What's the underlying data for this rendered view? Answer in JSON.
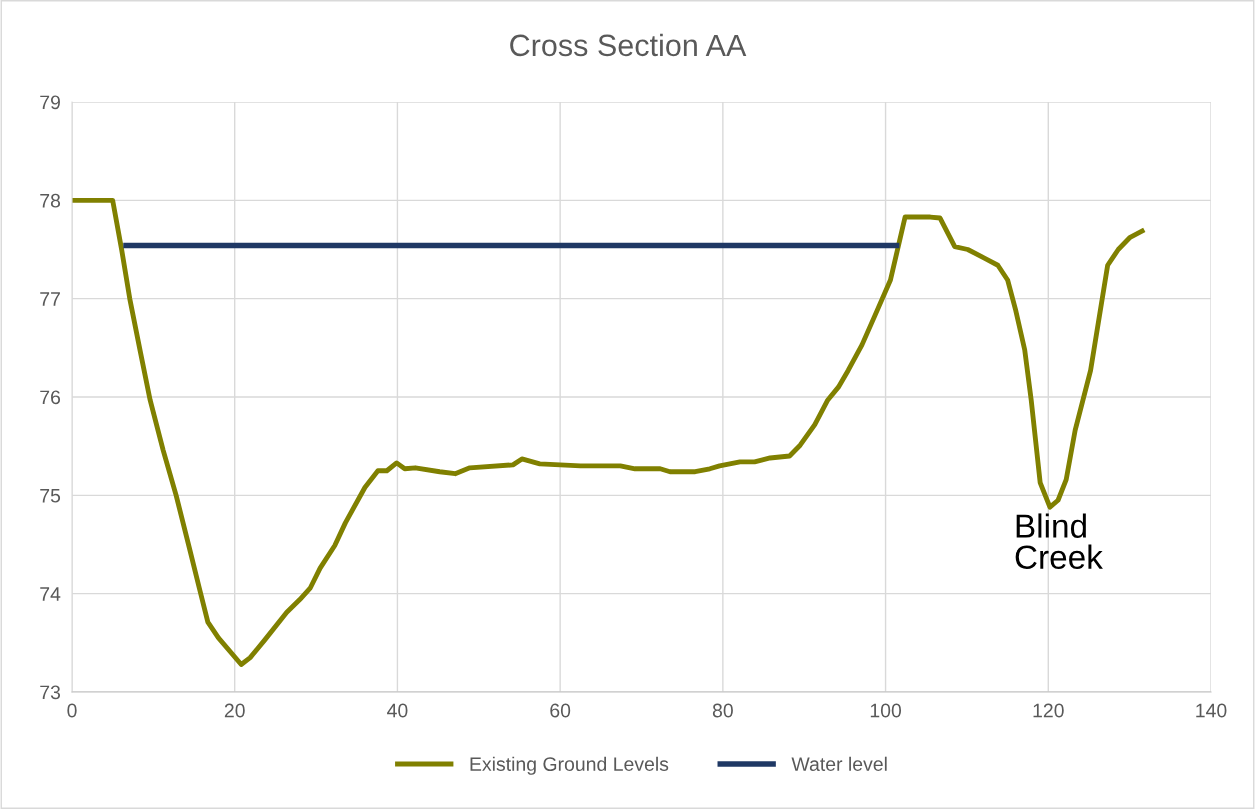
{
  "chart_data": {
    "type": "line",
    "title": "Cross Section AA",
    "xlim": [
      0,
      140
    ],
    "xticks": [
      0,
      20,
      40,
      60,
      80,
      100,
      120,
      140
    ],
    "ylim": [
      73,
      79
    ],
    "yticks": [
      73,
      74,
      75,
      76,
      77,
      78,
      79
    ],
    "grid": true,
    "legend": "bottom",
    "marker": "none",
    "line_style": "solid",
    "annotations": [
      "Blind\nCreek"
    ],
    "series": [
      {
        "name": "Existing Ground Levels",
        "color": "#808000",
        "x": [
          0,
          5.0,
          6.1,
          7.1,
          8.4,
          9.6,
          11.2,
          12.8,
          14.5,
          15.7,
          16.7,
          18.0,
          20.8,
          21.9,
          23.7,
          26.4,
          28.0,
          29.3,
          30.5,
          32.3,
          33.6,
          36.0,
          37.6,
          38.7,
          39.9,
          40.9,
          42.2,
          45.2,
          47.1,
          48.9,
          54.2,
          55.3,
          57.5,
          62.5,
          67.4,
          69.2,
          72.3,
          73.5,
          76.6,
          78.4,
          79.6,
          82.1,
          83.9,
          85.8,
          88.2,
          89.5,
          91.3,
          92.9,
          94.2,
          95.4,
          97.1,
          98.7,
          100.6,
          102.4,
          105.5,
          106.7,
          108.5,
          110.1,
          112.2,
          113.8,
          115.0,
          116.0,
          117.1,
          117.9,
          119.0,
          120.2,
          121.2,
          122.2,
          123.3,
          125.2,
          127.3,
          128.6,
          130.0,
          131.8
        ],
        "values": [
          78.0,
          78.0,
          77.5,
          77.0,
          76.46,
          75.97,
          75.46,
          75.0,
          74.44,
          74.04,
          73.71,
          73.55,
          73.28,
          73.35,
          73.53,
          73.81,
          73.94,
          74.06,
          74.26,
          74.49,
          74.72,
          75.08,
          75.25,
          75.25,
          75.33,
          75.27,
          75.28,
          75.24,
          75.22,
          75.28,
          75.31,
          75.37,
          75.32,
          75.3,
          75.3,
          75.27,
          75.27,
          75.24,
          75.24,
          75.27,
          75.3,
          75.34,
          75.34,
          75.38,
          75.4,
          75.51,
          75.72,
          75.97,
          76.1,
          76.27,
          76.53,
          76.83,
          77.19,
          77.83,
          77.83,
          77.82,
          77.53,
          77.5,
          77.41,
          77.34,
          77.19,
          76.88,
          76.48,
          75.97,
          75.13,
          74.88,
          74.95,
          75.16,
          75.66,
          76.27,
          77.34,
          77.5,
          77.62,
          77.7
        ]
      },
      {
        "name": "Water level",
        "color": "#1f3864",
        "x": [
          6.3,
          101.7
        ],
        "values": [
          77.54,
          77.54
        ]
      }
    ]
  }
}
